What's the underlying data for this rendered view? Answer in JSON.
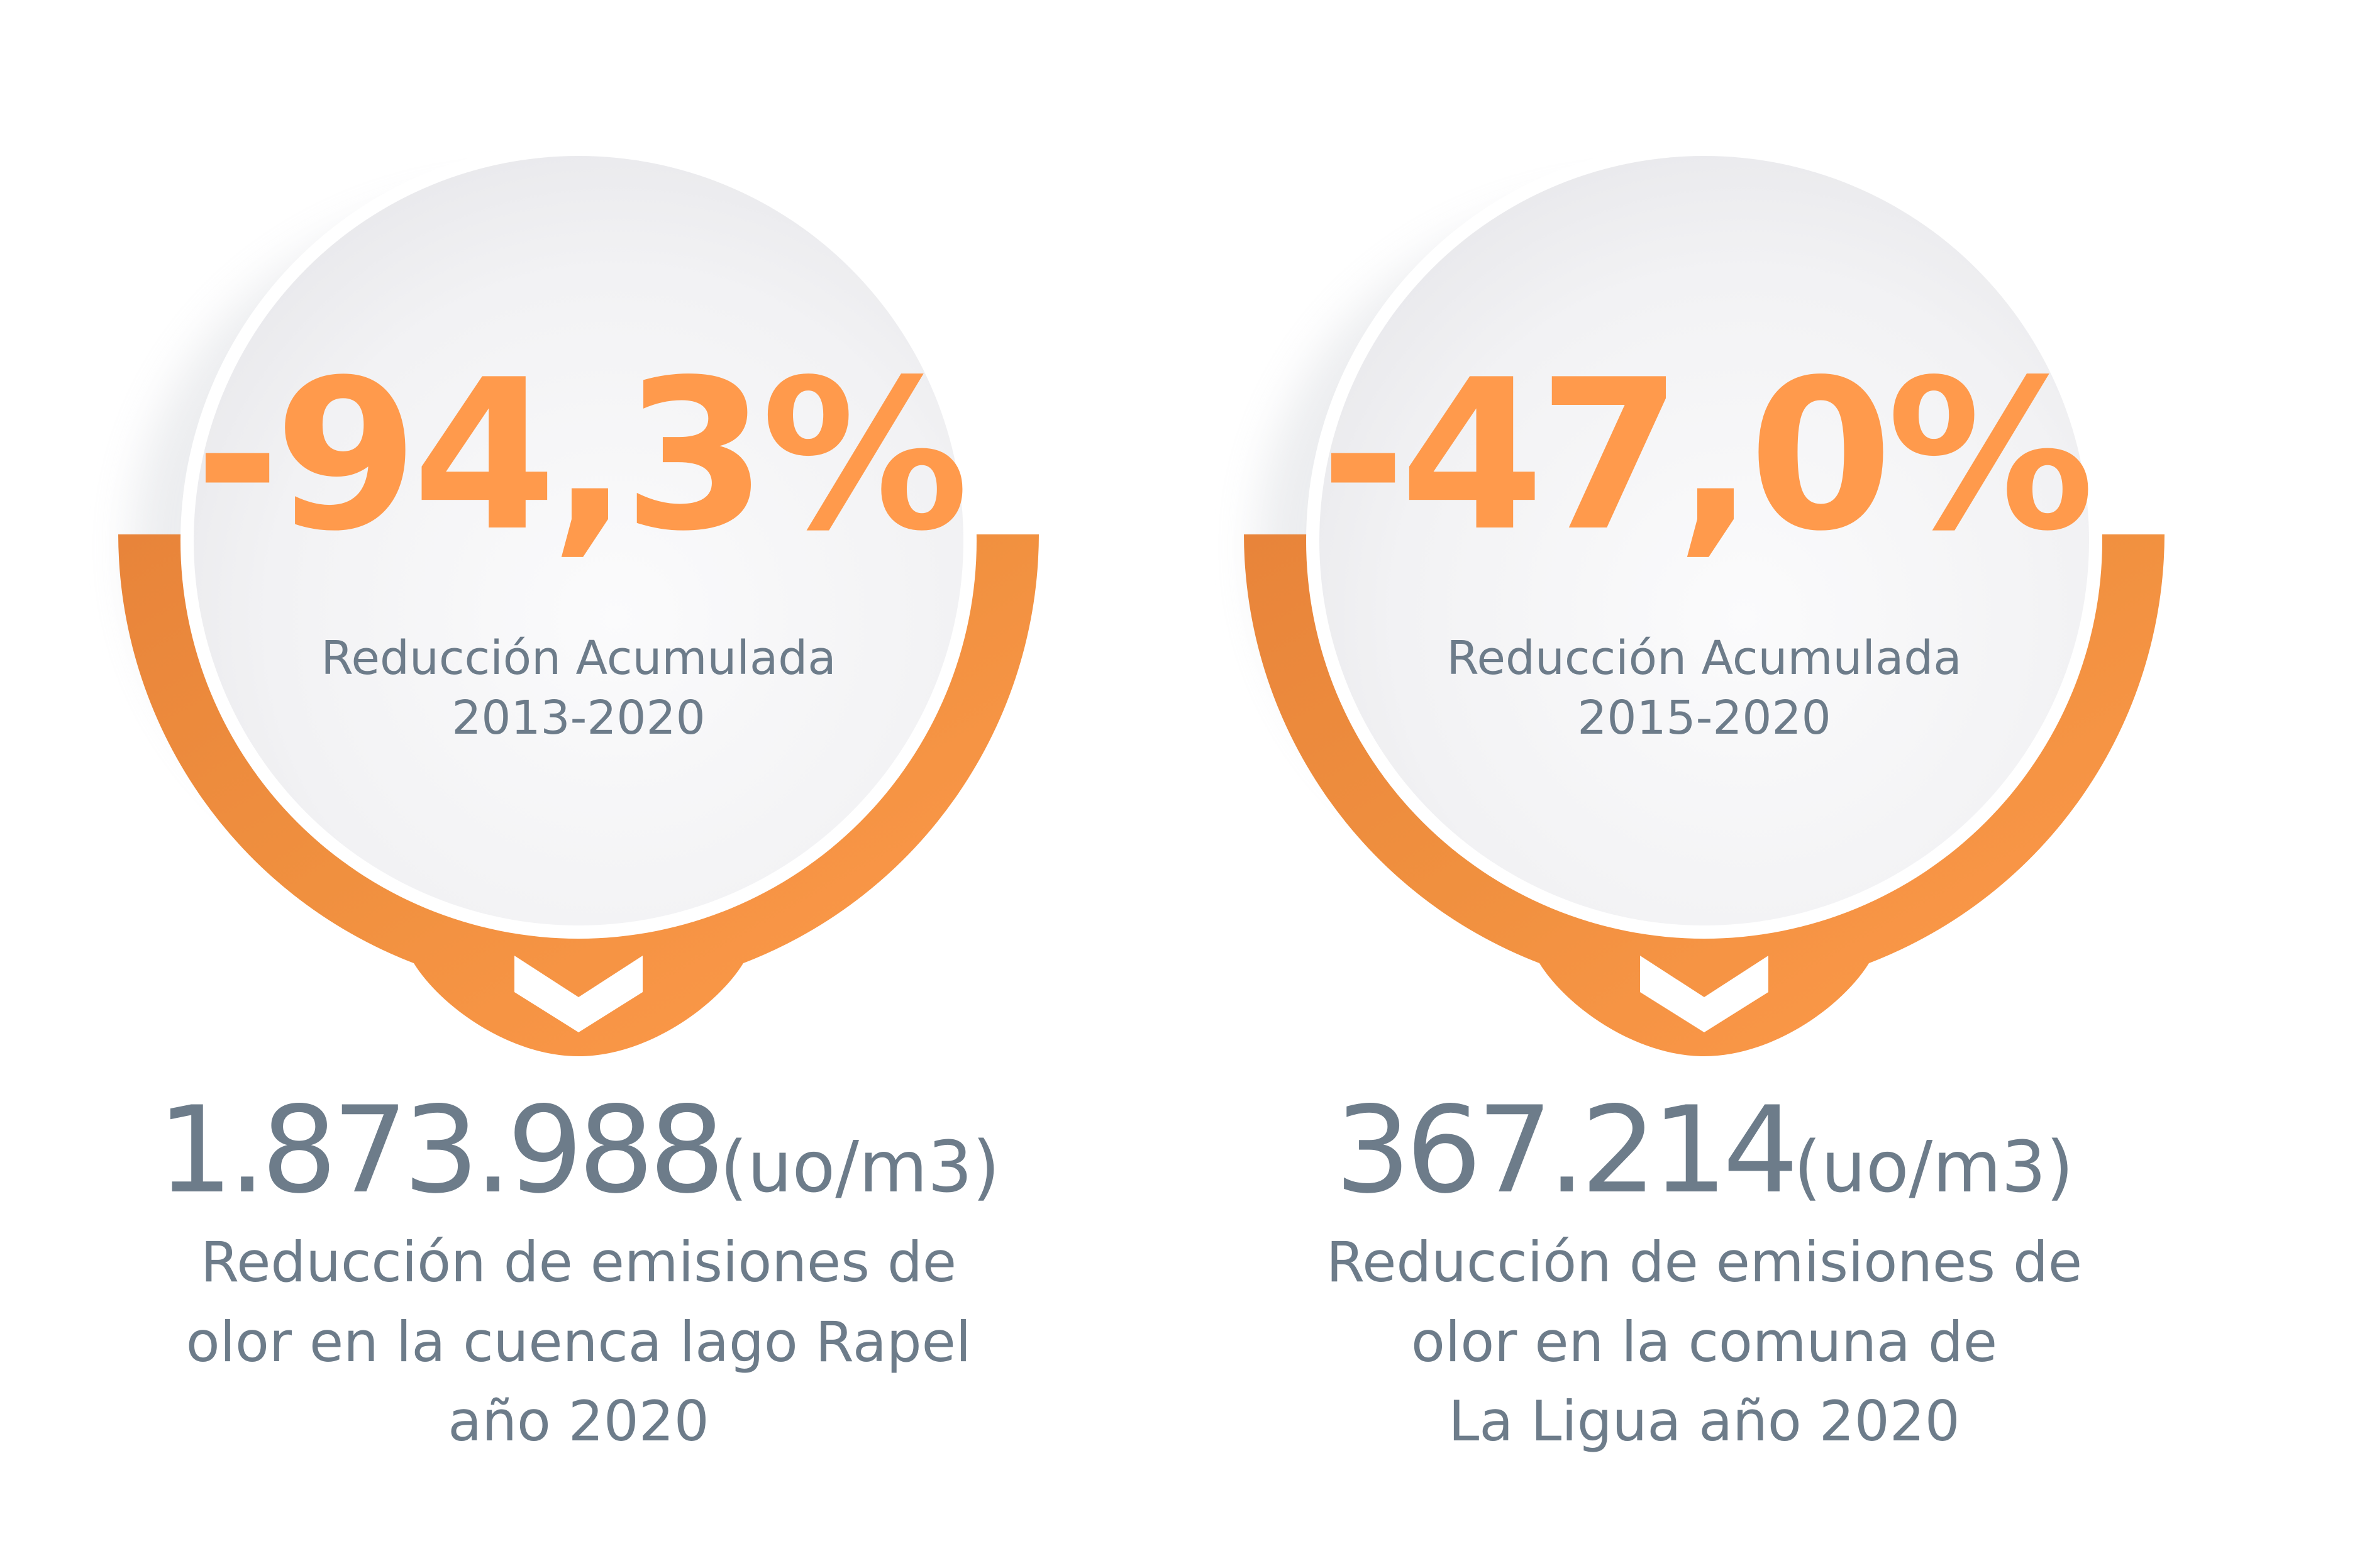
{
  "colors": {
    "accent": "#FF9A4C",
    "accent_dark": "#E87F35",
    "text_slate": "#6D7C8A",
    "circle_light": "#F7F7F8",
    "circle_shade": "#E6E6EA"
  },
  "cards": [
    {
      "percentage": "-94,3%",
      "subtitle_line1": "Reducción Acumulada",
      "subtitle_line2": "2013-2020",
      "stat_value": "1.873.988",
      "stat_unit": "(uo/m3)",
      "desc_line1": "Reducción de emisiones de",
      "desc_line2": "olor en la cuenca lago Rapel",
      "desc_line3": "año 2020",
      "icon": "chevron-down-icon"
    },
    {
      "percentage": "-47,0%",
      "subtitle_line1": "Reducción Acumulada",
      "subtitle_line2": "2015-2020",
      "stat_value": "367.214",
      "stat_unit": "(uo/m3)",
      "desc_line1": "Reducción de emisiones de",
      "desc_line2": "olor en la comuna de",
      "desc_line3": "La Ligua año 2020",
      "icon": "chevron-down-icon"
    }
  ]
}
